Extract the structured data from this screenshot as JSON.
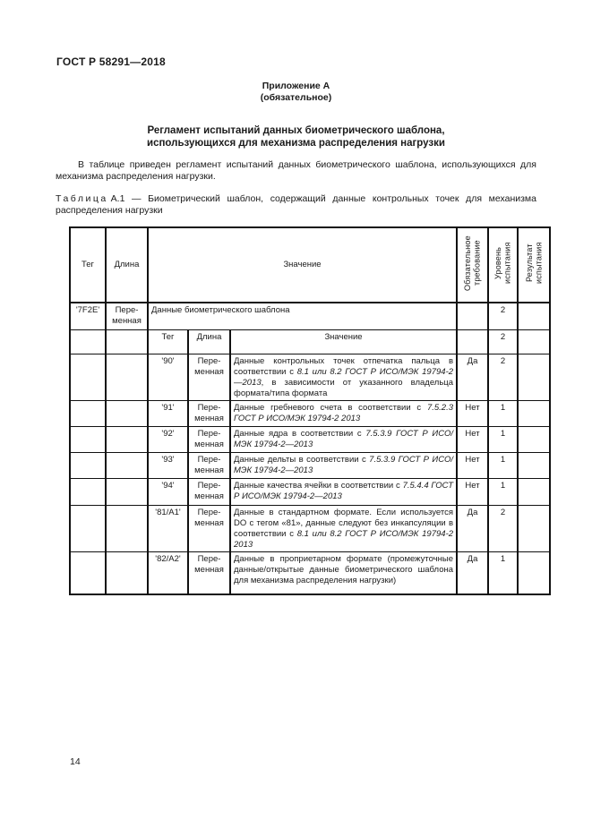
{
  "page": {
    "doc_code": "ГОСТ Р 58291—2018",
    "appendix_title": "Приложение А",
    "appendix_type": "(обязательное)",
    "title_line1": "Регламент испытаний данных биометрического шаблона,",
    "title_line2": "использующихся для механизма распределения нагрузки",
    "intro": "В таблице приведен регламент испытаний данных биометрического шаблона, использующихся для механизма распределения нагрузки.",
    "table_caption_word": "Таблица",
    "table_caption_rest": "А.1 — Биометрический шаблон, содержащий данные контрольных точек для механизма распределения нагрузки",
    "page_number": "14"
  },
  "table": {
    "headers": {
      "tag": "Тег",
      "length": "Длина",
      "value": "Значение",
      "mandatory": "Обязательное требование",
      "level": "Уровень испытания",
      "result": "Результат испытания"
    },
    "nested_headers": {
      "tag": "Тег",
      "length": "Длина",
      "value": "Значение"
    },
    "rows": [
      {
        "tag": "'7F2E'",
        "length": "Пере-менная",
        "value": "Данные биометрического шаблона",
        "mandatory": "",
        "level": "2",
        "result": ""
      },
      {
        "tag": "",
        "length": "",
        "mandatory": "",
        "level": "2",
        "result": ""
      },
      {
        "tag": "'90'",
        "length": "Пере-менная",
        "mandatory": "Да",
        "level": "2",
        "result": "",
        "value_parts": [
          {
            "t": "Данные контрольных точек отпечатка пальца в соответствии с ",
            "i": false
          },
          {
            "t": "8.1 или 8.2 ГОСТ Р ИСО/МЭК 19794-2—2013",
            "i": true
          },
          {
            "t": ", в зависимости от указанного владельца формата/типа формата",
            "i": false
          }
        ]
      },
      {
        "tag": "'91'",
        "length": "Пере-менная",
        "mandatory": "Нет",
        "level": "1",
        "result": "",
        "value_parts": [
          {
            "t": "Данные гребневого счета в соответствии с ",
            "i": false
          },
          {
            "t": "7.5.2.3 ГОСТ Р ИСО/МЭК 19794-2 2013",
            "i": true
          }
        ]
      },
      {
        "tag": "'92'",
        "length": "Пере-менная",
        "mandatory": "Нет",
        "level": "1",
        "result": "",
        "value_parts": [
          {
            "t": "Данные ядра в соответствии с ",
            "i": false
          },
          {
            "t": "7.5.3.9 ГОСТ Р ИСО/МЭК 19794-2—2013",
            "i": true
          }
        ]
      },
      {
        "tag": "'93'",
        "length": "Пере-менная",
        "mandatory": "Нет",
        "level": "1",
        "result": "",
        "value_parts": [
          {
            "t": "Данные дельты в соответствии с ",
            "i": false
          },
          {
            "t": "7.5.3.9 ГОСТ Р ИСО/МЭК 19794-2—2013",
            "i": true
          }
        ]
      },
      {
        "tag": "'94'",
        "length": "Пере-менная",
        "mandatory": "Нет",
        "level": "1",
        "result": "",
        "value_parts": [
          {
            "t": "Данные качества ячейки в соответствии с ",
            "i": false
          },
          {
            "t": "7.5.4.4 ГОСТ Р ИСО/МЭК 19794-2—2013",
            "i": true
          }
        ]
      },
      {
        "tag": "'81/A1'",
        "length": "Пере-менная",
        "mandatory": "Да",
        "level": "2",
        "result": "",
        "value_parts": [
          {
            "t": "Данные в стандартном формате. Если используется DO с тегом «81», данные следуют без инкапсуляции в соответствии с ",
            "i": false
          },
          {
            "t": "8.1 или 8.2 ГОСТ Р ИСО/МЭК 19794-2 2013",
            "i": true
          }
        ]
      },
      {
        "tag": "'82/A2'",
        "length": "Пере-менная",
        "mandatory": "Да",
        "level": "1",
        "result": "",
        "value_parts": [
          {
            "t": "Данные в проприетарном формате (промежуточные данные/открытые данные биометрического шаблона для механизма распределения нагрузки)",
            "i": false
          }
        ]
      }
    ]
  }
}
